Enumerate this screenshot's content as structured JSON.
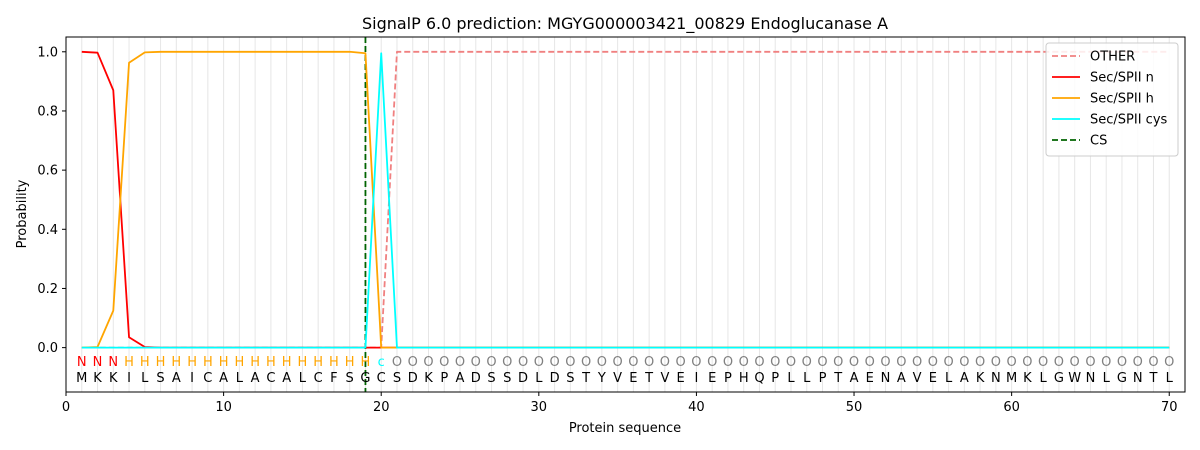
{
  "chart_data": {
    "type": "line",
    "title": "SignalP 6.0 prediction: MGYG000003421_00829 Endoglucanase A",
    "xlabel": "Protein sequence",
    "ylabel": "Probability",
    "xlim": [
      0,
      71
    ],
    "ylim": [
      -0.15,
      1.05
    ],
    "x_ticks": [
      0,
      10,
      20,
      30,
      40,
      50,
      60,
      70
    ],
    "y_ticks": [
      0.0,
      0.2,
      0.4,
      0.6,
      0.8,
      1.0
    ],
    "y_tick_labels": [
      "0.0",
      "0.2",
      "0.4",
      "0.6",
      "0.8",
      "1.0"
    ],
    "grid": "vertical lines at each residue",
    "legend_position": "top-right",
    "sequence": [
      "M",
      "K",
      "K",
      "I",
      "L",
      "S",
      "A",
      "I",
      "C",
      "A",
      "L",
      "A",
      "C",
      "A",
      "L",
      "C",
      "F",
      "S",
      "G",
      "C",
      "S",
      "D",
      "K",
      "P",
      "A",
      "D",
      "S",
      "S",
      "D",
      "L",
      "D",
      "S",
      "T",
      "Y",
      "V",
      "E",
      "T",
      "V",
      "E",
      "I",
      "E",
      "P",
      "H",
      "Q",
      "P",
      "L",
      "L",
      "P",
      "T",
      "A",
      "E",
      "N",
      "A",
      "V",
      "E",
      "L",
      "A",
      "K",
      "N",
      "M",
      "K",
      "L",
      "G",
      "W",
      "N",
      "L",
      "G",
      "N",
      "T",
      "L"
    ],
    "annotation": [
      "N",
      "N",
      "N",
      "H",
      "H",
      "H",
      "H",
      "H",
      "H",
      "H",
      "H",
      "H",
      "H",
      "H",
      "H",
      "H",
      "H",
      "H",
      "H",
      "c",
      "O",
      "O",
      "O",
      "O",
      "O",
      "O",
      "O",
      "O",
      "O",
      "O",
      "O",
      "O",
      "O",
      "O",
      "O",
      "O",
      "O",
      "O",
      "O",
      "O",
      "O",
      "O",
      "O",
      "O",
      "O",
      "O",
      "O",
      "O",
      "O",
      "O",
      "O",
      "O",
      "O",
      "O",
      "O",
      "O",
      "O",
      "O",
      "O",
      "O",
      "O",
      "O",
      "O",
      "O",
      "O",
      "O",
      "O",
      "O",
      "O",
      "O"
    ],
    "annotation_colors": {
      "N": "#ff0000",
      "H": "#ffa500",
      "c": "#00ffff",
      "O": "#808080"
    },
    "cleavage_site": 19,
    "series": [
      {
        "name": "OTHER",
        "color": "#f08080",
        "dash": "dashed",
        "values": [
          0,
          0,
          0,
          0,
          0,
          0,
          0,
          0,
          0,
          0,
          0,
          0,
          0,
          0,
          0,
          0,
          0,
          0,
          0,
          0,
          1,
          1,
          1,
          1,
          1,
          1,
          1,
          1,
          1,
          1,
          1,
          1,
          1,
          1,
          1,
          1,
          1,
          1,
          1,
          1,
          1,
          1,
          1,
          1,
          1,
          1,
          1,
          1,
          1,
          1,
          1,
          1,
          1,
          1,
          1,
          1,
          1,
          1,
          1,
          1,
          1,
          1,
          1,
          1,
          1,
          1,
          1,
          1,
          1,
          1
        ]
      },
      {
        "name": "Sec/SPII n",
        "color": "#ff0000",
        "dash": "solid",
        "values": [
          1.0,
          0.997,
          0.87,
          0.035,
          0.002,
          0,
          0,
          0,
          0,
          0,
          0,
          0,
          0,
          0,
          0,
          0,
          0,
          0,
          0,
          0,
          0,
          0,
          0,
          0,
          0,
          0,
          0,
          0,
          0,
          0,
          0,
          0,
          0,
          0,
          0,
          0,
          0,
          0,
          0,
          0,
          0,
          0,
          0,
          0,
          0,
          0,
          0,
          0,
          0,
          0,
          0,
          0,
          0,
          0,
          0,
          0,
          0,
          0,
          0,
          0,
          0,
          0,
          0,
          0,
          0,
          0,
          0,
          0,
          0,
          0
        ]
      },
      {
        "name": "Sec/SPII h",
        "color": "#ffa500",
        "dash": "solid",
        "values": [
          0,
          0.002,
          0.125,
          0.963,
          0.998,
          1.0,
          1.0,
          1.0,
          1.0,
          1.0,
          1.0,
          1.0,
          1.0,
          1.0,
          1.0,
          1.0,
          1.0,
          1.0,
          0.995,
          0.0,
          0,
          0,
          0,
          0,
          0,
          0,
          0,
          0,
          0,
          0,
          0,
          0,
          0,
          0,
          0,
          0,
          0,
          0,
          0,
          0,
          0,
          0,
          0,
          0,
          0,
          0,
          0,
          0,
          0,
          0,
          0,
          0,
          0,
          0,
          0,
          0,
          0,
          0,
          0,
          0,
          0,
          0,
          0,
          0,
          0,
          0,
          0,
          0,
          0,
          0
        ]
      },
      {
        "name": "Sec/SPII cys",
        "color": "#00ffff",
        "dash": "solid",
        "values": [
          0,
          0,
          0,
          0,
          0,
          0,
          0,
          0,
          0,
          0,
          0,
          0,
          0,
          0,
          0,
          0,
          0,
          0,
          0,
          0.995,
          0,
          0,
          0,
          0,
          0,
          0,
          0,
          0,
          0,
          0,
          0,
          0,
          0,
          0,
          0,
          0,
          0,
          0,
          0,
          0,
          0,
          0,
          0,
          0,
          0,
          0,
          0,
          0,
          0,
          0,
          0,
          0,
          0,
          0,
          0,
          0,
          0,
          0,
          0,
          0,
          0,
          0,
          0,
          0,
          0,
          0,
          0,
          0,
          0,
          0
        ]
      },
      {
        "name": "CS",
        "color": "#006400",
        "dash": "dashed",
        "values": []
      }
    ]
  }
}
